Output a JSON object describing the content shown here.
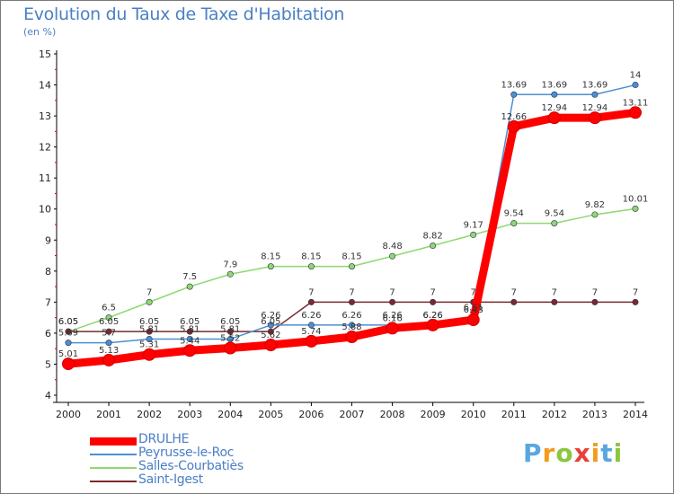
{
  "title": "Evolution du Taux de Taxe d'Habitation",
  "unit": "(en %)",
  "brand": {
    "text": "Proxiti",
    "colors": [
      "#5aa7e0",
      "#f29c1e",
      "#8cc63f",
      "#e8403a",
      "#f29c1e",
      "#5aa7e0",
      "#8cc63f"
    ]
  },
  "chart_data": {
    "type": "line",
    "title": "Evolution du Taux de Taxe d'Habitation",
    "ylabel": "(en %)",
    "xlabel": "",
    "ylim": [
      4,
      15
    ],
    "yticks": [
      4,
      5,
      6,
      7,
      8,
      9,
      10,
      11,
      12,
      13,
      14,
      15
    ],
    "x": [
      "2000",
      "2001",
      "2002",
      "2003",
      "2004",
      "2005",
      "2006",
      "2007",
      "2008",
      "2009",
      "2010",
      "2011",
      "2012",
      "2013",
      "2014"
    ],
    "series": [
      {
        "name": "DRULHE",
        "color": "#ff0000",
        "width": 9,
        "values": [
          5.01,
          5.13,
          5.31,
          5.44,
          5.52,
          5.62,
          5.74,
          5.88,
          6.16,
          6.26,
          6.43,
          12.66,
          12.94,
          12.94,
          13.11
        ],
        "labels": [
          "5.01",
          "5.13",
          "5.31",
          "5.44",
          "5.52",
          "5.62",
          "5.74",
          "5.88",
          "6.16",
          "6.26",
          "6.43",
          "12.66",
          "12.94",
          "12.94",
          "13.11"
        ]
      },
      {
        "name": "Peyrusse-le-Roc",
        "color": "#4a90d0",
        "width": 1.5,
        "values": [
          5.69,
          5.69,
          5.81,
          5.81,
          5.81,
          6.26,
          6.26,
          6.26,
          6.26,
          6.26,
          6.51,
          13.69,
          13.69,
          13.69,
          14
        ],
        "labels": [
          "5.69",
          "5.7",
          "5.81",
          "5.81",
          "5.81",
          "6.26",
          "6.26",
          "6.26",
          "6.26",
          "6.26",
          "6.51",
          "13.69",
          "13.69",
          "13.69",
          "14"
        ]
      },
      {
        "name": "Salles-Courbatiès",
        "color": "#8ed870",
        "width": 1.5,
        "values": [
          6.05,
          6.5,
          7,
          7.5,
          7.9,
          8.15,
          8.15,
          8.15,
          8.48,
          8.82,
          9.17,
          9.54,
          9.54,
          9.82,
          10.01
        ],
        "labels": [
          "6.05",
          "6.5",
          "7",
          "7.5",
          "7.9",
          "8.15",
          "8.15",
          "8.15",
          "8.48",
          "8.82",
          "9.17",
          "9.54",
          "9.54",
          "9.82",
          "10.01"
        ]
      },
      {
        "name": "Saint-Igest",
        "color": "#7a2a2a",
        "width": 1.5,
        "values": [
          6.05,
          6.05,
          6.05,
          6.05,
          6.05,
          6.05,
          7,
          7,
          7,
          7,
          7,
          7,
          7,
          7,
          7
        ],
        "labels": [
          "6.05",
          "6.05",
          "6.05",
          "6.05",
          "6.05",
          "6.05",
          "7",
          "7",
          "7",
          "7",
          "7",
          "7",
          "7",
          "7",
          "7"
        ]
      }
    ],
    "legend": "bottom-left",
    "grid": false
  }
}
